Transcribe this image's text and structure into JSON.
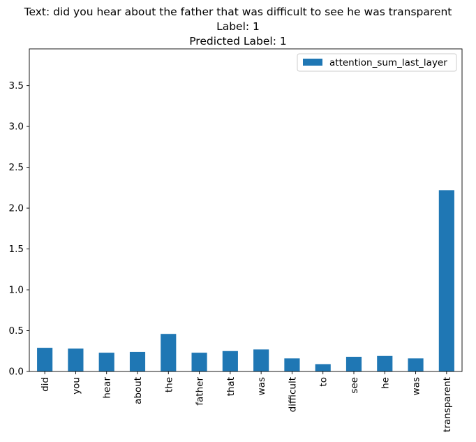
{
  "title_lines": [
    "Text: did you hear about the father that was difficult to see he was transparent",
    "Label: 1",
    "Predicted Label: 1"
  ],
  "chart_data": {
    "type": "bar",
    "categories": [
      "did",
      "you",
      "hear",
      "about",
      "the",
      "father",
      "that",
      "was",
      "difficult",
      "to",
      "see",
      "he",
      "was",
      "transparent"
    ],
    "series": [
      {
        "name": "attention_sum_last_layer",
        "values": [
          0.29,
          0.28,
          0.23,
          0.24,
          0.46,
          0.23,
          0.25,
          0.27,
          0.16,
          0.09,
          0.18,
          0.19,
          0.16,
          2.22
        ]
      }
    ],
    "ylim": [
      0,
      3.95
    ],
    "yticks": [
      "0.0",
      "0.5",
      "1.0",
      "1.5",
      "2.0",
      "2.5",
      "3.0",
      "3.5"
    ],
    "xlabel": "",
    "ylabel": "",
    "legend_position": "top-right",
    "grid": false,
    "bar_color": "#1f77b4"
  }
}
